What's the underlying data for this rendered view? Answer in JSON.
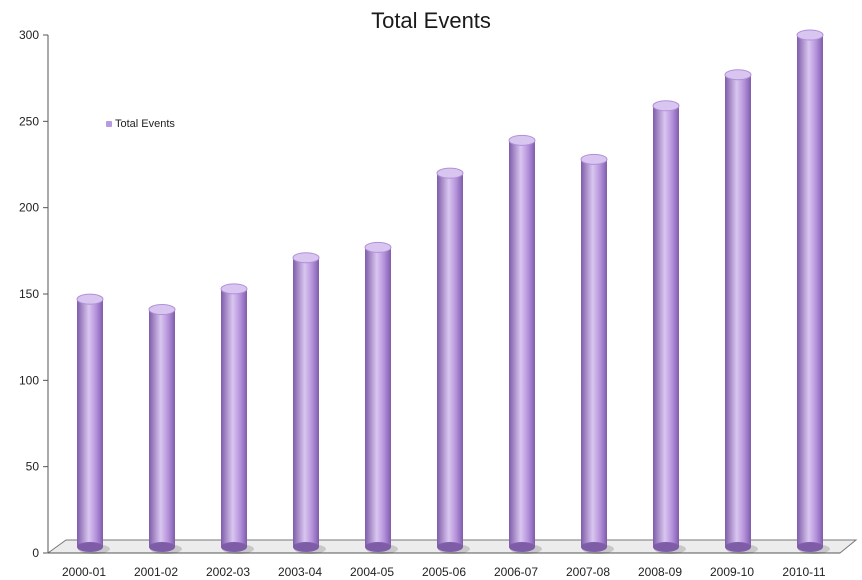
{
  "chart_data": {
    "type": "bar",
    "title": "Total Events",
    "categories": [
      "2000-01",
      "2001-02",
      "2002-03",
      "2003-04",
      "2004-05",
      "2005-06",
      "2006-07",
      "2007-08",
      "2008-09",
      "2009-10",
      "2010-11"
    ],
    "series": [
      {
        "name": "Total Events",
        "values": [
          147,
          141,
          153,
          171,
          177,
          220,
          239,
          228,
          259,
          277,
          300
        ]
      }
    ],
    "ylim": [
      0,
      300
    ],
    "yticks": [
      0,
      50,
      100,
      150,
      200,
      250,
      300
    ],
    "legend_position": "top-left",
    "colors": {
      "bar": "#b28fd9",
      "bar_dark": "#7f5ca8",
      "bar_light": "#d9c6f0",
      "floor": "#ececec"
    }
  }
}
